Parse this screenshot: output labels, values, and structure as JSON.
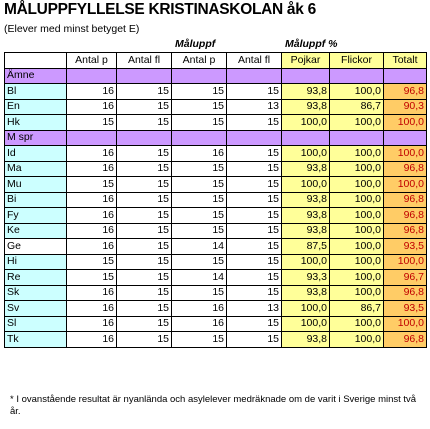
{
  "title": "MÅLUPPFYLLELSE KRISTINASKOLAN åk 6",
  "subtitle": "(Elever med minst betyget E)",
  "group_headers": {
    "left": "Måluppf",
    "right": "Måluppf %"
  },
  "column_headers": [
    "",
    "Antal p",
    "Antal fl",
    "Antal p",
    "Antal fl",
    "Pojkar",
    "Flickor",
    "Totalt"
  ],
  "sections": [
    {
      "label": "Ämne",
      "rows": [
        {
          "name": "Bl",
          "vals": [
            "16",
            "15",
            "15",
            "15",
            "93,8",
            "100,0",
            "96,8"
          ]
        },
        {
          "name": "En",
          "vals": [
            "16",
            "15",
            "15",
            "13",
            "93,8",
            "86,7",
            "90,3"
          ]
        },
        {
          "name": "Hk",
          "vals": [
            "15",
            "15",
            "15",
            "15",
            "100,0",
            "100,0",
            "100,0"
          ]
        }
      ]
    },
    {
      "label": "M spr",
      "rows": [
        {
          "name": "Id",
          "vals": [
            "16",
            "15",
            "16",
            "15",
            "100,0",
            "100,0",
            "100,0"
          ]
        },
        {
          "name": "Ma",
          "vals": [
            "16",
            "15",
            "15",
            "15",
            "93,8",
            "100,0",
            "96,8"
          ]
        },
        {
          "name": "Mu",
          "vals": [
            "15",
            "15",
            "15",
            "15",
            "100,0",
            "100,0",
            "100,0"
          ]
        },
        {
          "name": "Bi",
          "vals": [
            "16",
            "15",
            "15",
            "15",
            "93,8",
            "100,0",
            "96,8"
          ]
        },
        {
          "name": "Fy",
          "vals": [
            "16",
            "15",
            "15",
            "15",
            "93,8",
            "100,0",
            "96,8"
          ]
        },
        {
          "name": "Ke",
          "vals": [
            "16",
            "15",
            "15",
            "15",
            "93,8",
            "100,0",
            "96,8"
          ]
        },
        {
          "name": "Ge",
          "vals": [
            "16",
            "15",
            "14",
            "15",
            "87,5",
            "100,0",
            "93,5"
          ]
        },
        {
          "name": "Hi",
          "vals": [
            "15",
            "15",
            "15",
            "15",
            "100,0",
            "100,0",
            "100,0"
          ]
        },
        {
          "name": "Re",
          "vals": [
            "15",
            "15",
            "14",
            "15",
            "93,3",
            "100,0",
            "96,7"
          ]
        },
        {
          "name": "Sk",
          "vals": [
            "16",
            "15",
            "15",
            "15",
            "93,8",
            "100,0",
            "96,8"
          ]
        },
        {
          "name": "Sv",
          "vals": [
            "16",
            "15",
            "16",
            "13",
            "100,0",
            "86,7",
            "93,5"
          ]
        },
        {
          "name": "Sl",
          "vals": [
            "16",
            "15",
            "16",
            "15",
            "100,0",
            "100,0",
            "100,0"
          ]
        },
        {
          "name": "Tk",
          "vals": [
            "16",
            "15",
            "15",
            "15",
            "93,8",
            "100,0",
            "96,8"
          ]
        }
      ]
    }
  ],
  "footnote": "* I ovanstående resultat är nyanlända och asylelever medräknade om de varit i Sverige minst två år.",
  "colors": {
    "subject_cell": "#ccffff",
    "section_row": "#cc99ff",
    "percent_cell": "#ffff99",
    "total_cell": "#ffcc66",
    "total_text": "#c00000"
  }
}
